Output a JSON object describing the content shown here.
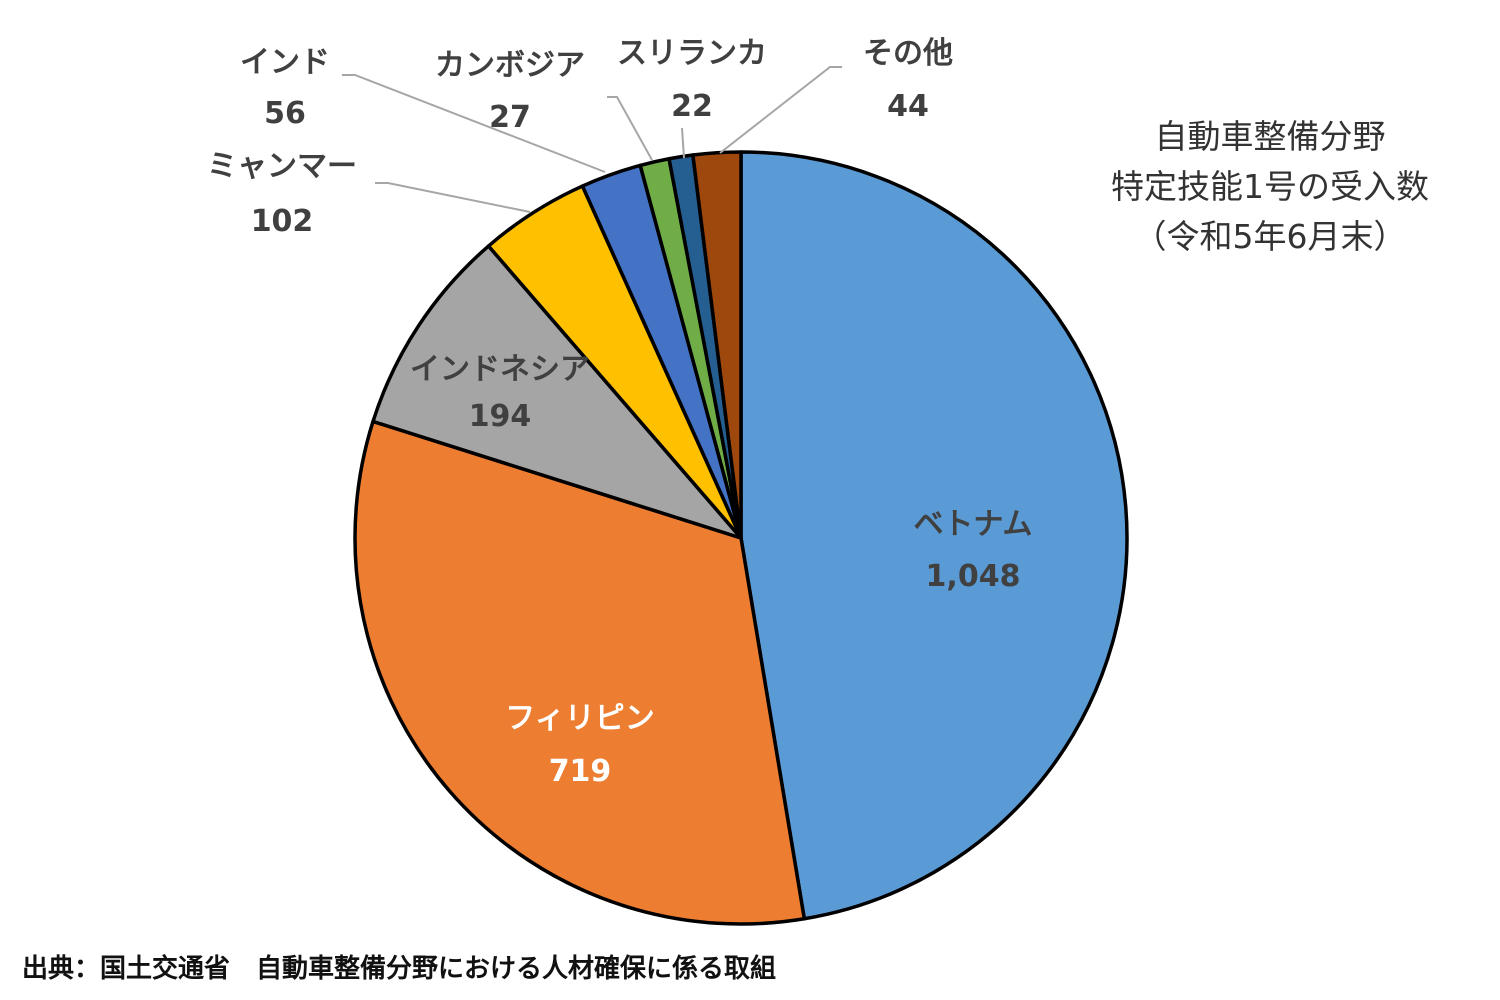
{
  "chart_data": {
    "type": "pie",
    "title_lines": [
      "自動車整備分野",
      "特定技能1号の受入数",
      "（令和5年6月末）"
    ],
    "slices": [
      {
        "label": "ベトナム",
        "value": 1048,
        "display": "1,048",
        "color": "#5B9BD5"
      },
      {
        "label": "フィリピン",
        "value": 719,
        "display": "719",
        "color": "#ED7D31"
      },
      {
        "label": "インドネシア",
        "value": 194,
        "display": "194",
        "color": "#A5A5A5"
      },
      {
        "label": "ミャンマー",
        "value": 102,
        "display": "102",
        "color": "#FFC000"
      },
      {
        "label": "インド",
        "value": 56,
        "display": "56",
        "color": "#4472C4"
      },
      {
        "label": "カンボジア",
        "value": 27,
        "display": "27",
        "color": "#70AD47"
      },
      {
        "label": "スリランカ",
        "value": 22,
        "display": "22",
        "color": "#255E91"
      },
      {
        "label": "その他",
        "value": 44,
        "display": "44",
        "color": "#9E480E"
      }
    ],
    "start": "top",
    "direction": "clockwise"
  },
  "source": "出典：国土交通省　自動車整備分野における人材確保に係る取組"
}
